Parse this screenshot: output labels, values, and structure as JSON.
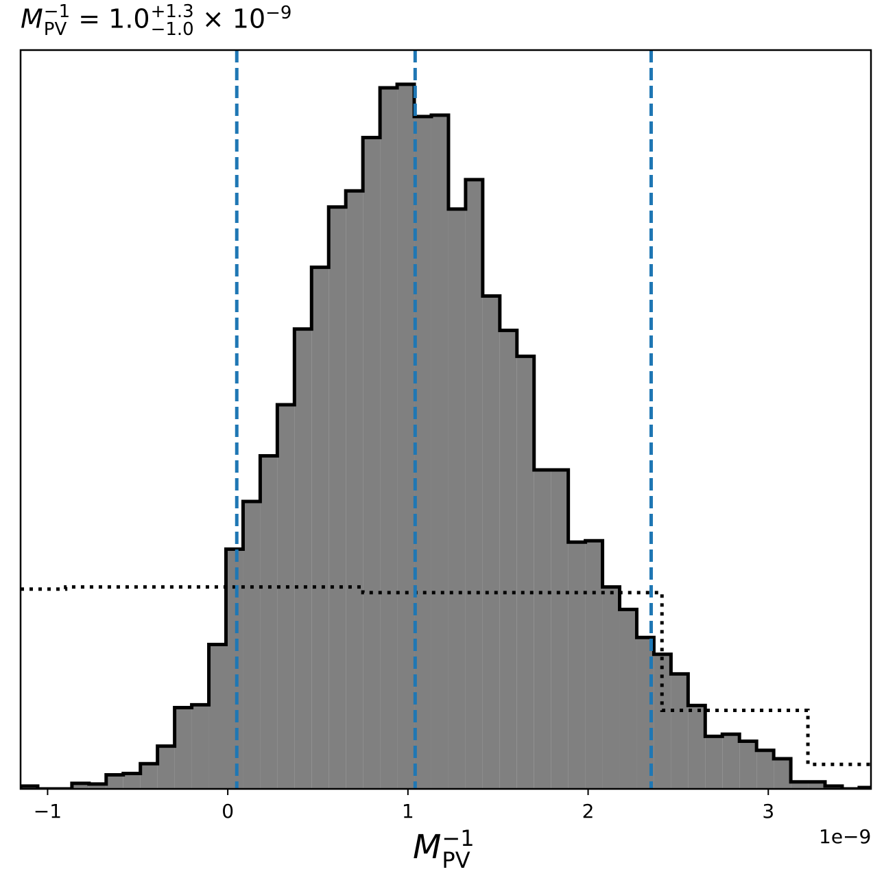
{
  "title": {
    "symbol": "M",
    "symbol_sub": "PV",
    "symbol_sup": "−1",
    "equals": "=",
    "value": "1.0",
    "err_plus": "+1.3",
    "err_minus": "−1.0",
    "times": "×",
    "base": "10",
    "exponent": "−9"
  },
  "xlabel": {
    "symbol": "M",
    "symbol_sub": "PV",
    "symbol_sup": "−1"
  },
  "offset_text": "1e−9",
  "chart_data": {
    "type": "histogram",
    "xlim": [
      -1.15,
      3.57
    ],
    "ylim": [
      0,
      1.0
    ],
    "x_scale_note": "values in units of 1e-9",
    "xticks": [
      -1,
      0,
      1,
      2,
      3
    ],
    "xtick_labels": [
      "−1",
      "0",
      "1",
      "2",
      "3"
    ],
    "y_axis_shown": false,
    "grid": false,
    "histogram": {
      "fill": "#808080",
      "edge": "#000000",
      "bin_edges": [
        -1.15,
        -1.055,
        -0.96,
        -0.865,
        -0.77,
        -0.675,
        -0.58,
        -0.485,
        -0.39,
        -0.295,
        -0.2,
        -0.105,
        -0.01,
        0.085,
        0.18,
        0.275,
        0.37,
        0.465,
        0.56,
        0.655,
        0.75,
        0.845,
        0.94,
        1.035,
        1.13,
        1.225,
        1.32,
        1.415,
        1.51,
        1.605,
        1.7,
        1.795,
        1.89,
        1.985,
        2.08,
        2.175,
        2.27,
        2.365,
        2.46,
        2.555,
        2.65,
        2.745,
        2.84,
        2.935,
        3.03,
        3.125,
        3.22,
        3.315,
        3.41,
        3.505,
        3.57
      ],
      "heights": [
        0.004,
        0.0,
        0.0,
        0.008,
        0.007,
        0.02,
        0.022,
        0.036,
        0.061,
        0.116,
        0.12,
        0.206,
        0.342,
        0.41,
        0.475,
        0.548,
        0.656,
        0.744,
        0.83,
        0.853,
        0.929,
        1.0,
        1.005,
        0.959,
        0.961,
        0.827,
        0.869,
        0.703,
        0.654,
        0.617,
        0.455,
        0.455,
        0.352,
        0.354,
        0.288,
        0.256,
        0.216,
        0.192,
        0.164,
        0.119,
        0.075,
        0.078,
        0.068,
        0.055,
        0.043,
        0.01,
        0.01,
        0.004,
        0.0,
        0.002
      ]
    },
    "prior_step": {
      "style": "dotted",
      "color": "#000000",
      "edges": [
        -1.15,
        -0.9,
        0.75,
        2.41,
        3.22,
        3.57
      ],
      "heights": [
        0.285,
        0.288,
        0.28,
        0.112,
        0.035
      ]
    },
    "vlines": {
      "color": "#1f77b4",
      "style": "dashed",
      "x": [
        0.05,
        1.04,
        2.35
      ]
    }
  }
}
